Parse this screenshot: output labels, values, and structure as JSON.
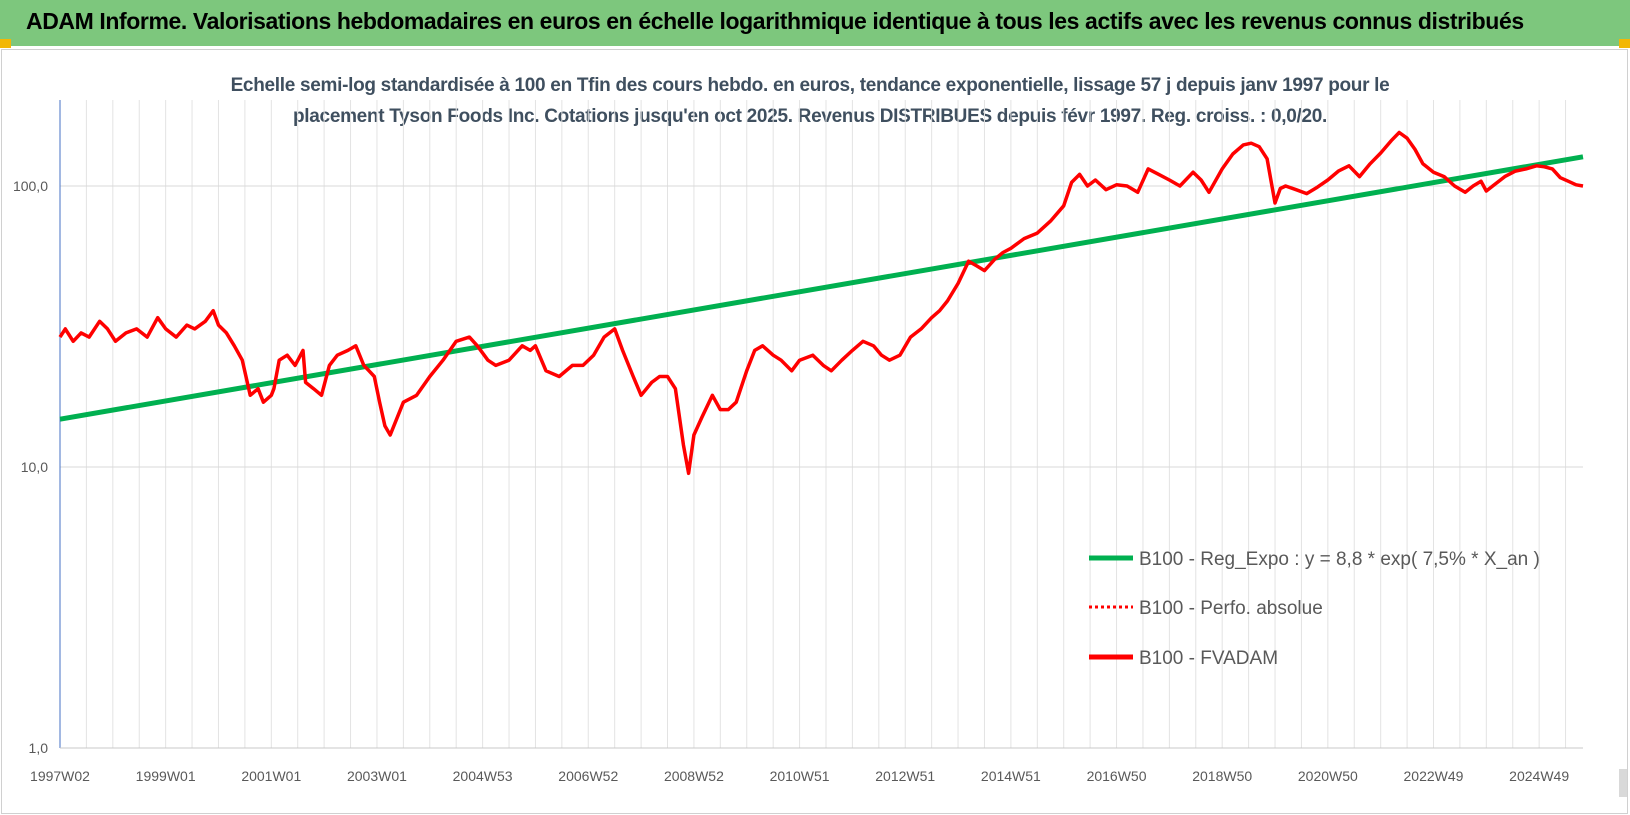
{
  "header": {
    "title": "ADAM Informe. Valorisations hebdomadaires en euros en échelle logarithmique identique à tous les actifs avec les revenus connus distribués",
    "background": "#7dc77d"
  },
  "chart_data": {
    "type": "line",
    "title_lines": [
      "Echelle semi-log standardisée à 100 en Tfin des cours hebdo. en euros, tendance exponentielle, lissage 57 j depuis janv 1997 pour le",
      "placement Tyson Foods Inc. Cotations jusqu'en oct 2025. Revenus DISTRIBUES depuis févr 1997.  Reg. croiss. : 0,0/20."
    ],
    "y_scale": "log",
    "ylim": [
      1,
      200
    ],
    "y_ticks": [
      {
        "value": 1,
        "label": "1,0"
      },
      {
        "value": 10,
        "label": "10,0"
      },
      {
        "value": 100,
        "label": "100,0"
      }
    ],
    "xlim": [
      1997.0,
      2025.83
    ],
    "x_ticks": [
      {
        "value": 1997.0,
        "label": "1997W02"
      },
      {
        "value": 1999.0,
        "label": "1999W01"
      },
      {
        "value": 2001.0,
        "label": "2001W01"
      },
      {
        "value": 2003.0,
        "label": "2003W01"
      },
      {
        "value": 2005.0,
        "label": "2004W53"
      },
      {
        "value": 2007.0,
        "label": "2006W52"
      },
      {
        "value": 2009.0,
        "label": "2008W52"
      },
      {
        "value": 2011.0,
        "label": "2010W51"
      },
      {
        "value": 2013.0,
        "label": "2012W51"
      },
      {
        "value": 2015.0,
        "label": "2014W51"
      },
      {
        "value": 2017.0,
        "label": "2016W50"
      },
      {
        "value": 2019.0,
        "label": "2018W50"
      },
      {
        "value": 2021.0,
        "label": "2020W50"
      },
      {
        "value": 2023.0,
        "label": "2022W49"
      },
      {
        "value": 2025.0,
        "label": "2024W49"
      }
    ],
    "grid": true,
    "legend_position": "bottom-right",
    "series": [
      {
        "name": "B100 - Reg_Expo : y = 8,8 * exp( 7,5% *  X_an )",
        "color": "#00b050",
        "style": "solid",
        "x": [
          1997.0,
          2025.83
        ],
        "y": [
          14.8,
          127
        ]
      },
      {
        "name": "B100 - Perfo. absolue",
        "color": "#ff0000",
        "style": "dotted",
        "x": [],
        "y": []
      },
      {
        "name": "B100 - FVADAM",
        "color": "#ff0000",
        "style": "solid",
        "x": [
          1997.0,
          1997.1,
          1997.25,
          1997.4,
          1997.55,
          1997.75,
          1997.9,
          1998.05,
          1998.25,
          1998.45,
          1998.65,
          1998.85,
          1999.0,
          1999.2,
          1999.4,
          1999.55,
          1999.75,
          1999.9,
          2000.0,
          2000.15,
          2000.3,
          2000.45,
          2000.6,
          2000.75,
          2000.85,
          2001.0,
          2001.05,
          2001.15,
          2001.3,
          2001.45,
          2001.6,
          2001.65,
          2001.8,
          2001.95,
          2002.1,
          2002.25,
          2002.45,
          2002.6,
          2002.75,
          2002.85,
          2002.95,
          2003.05,
          2003.15,
          2003.25,
          2003.5,
          2003.75,
          2004.0,
          2004.25,
          2004.5,
          2004.75,
          2004.9,
          2005.1,
          2005.25,
          2005.5,
          2005.75,
          2005.9,
          2006.0,
          2006.2,
          2006.45,
          2006.7,
          2006.9,
          2007.1,
          2007.3,
          2007.5,
          2007.65,
          2007.85,
          2008.0,
          2008.2,
          2008.35,
          2008.5,
          2008.65,
          2008.8,
          2008.9,
          2009.0,
          2009.15,
          2009.35,
          2009.5,
          2009.65,
          2009.8,
          2010.0,
          2010.15,
          2010.3,
          2010.5,
          2010.65,
          2010.85,
          2011.0,
          2011.25,
          2011.45,
          2011.6,
          2011.8,
          2012.0,
          2012.2,
          2012.4,
          2012.55,
          2012.7,
          2012.9,
          2013.1,
          2013.3,
          2013.5,
          2013.65,
          2013.8,
          2014.0,
          2014.2,
          2014.35,
          2014.5,
          2014.7,
          2014.85,
          2015.0,
          2015.25,
          2015.5,
          2015.75,
          2016.0,
          2016.15,
          2016.3,
          2016.45,
          2016.6,
          2016.8,
          2017.0,
          2017.2,
          2017.4,
          2017.6,
          2017.8,
          2018.0,
          2018.2,
          2018.45,
          2018.6,
          2018.75,
          2019.0,
          2019.2,
          2019.4,
          2019.55,
          2019.7,
          2019.85,
          2020.0,
          2020.1,
          2020.2,
          2020.4,
          2020.6,
          2020.8,
          2021.0,
          2021.2,
          2021.4,
          2021.6,
          2021.8,
          2022.0,
          2022.2,
          2022.35,
          2022.5,
          2022.65,
          2022.8,
          2023.0,
          2023.2,
          2023.4,
          2023.6,
          2023.75,
          2023.9,
          2024.0,
          2024.15,
          2024.35,
          2024.55,
          2024.75,
          2024.95,
          2025.1,
          2025.25,
          2025.4,
          2025.55,
          2025.7,
          2025.83
        ],
        "y": [
          29,
          31,
          28,
          30,
          29,
          33,
          31,
          28,
          30,
          31,
          29,
          34,
          31,
          29,
          32,
          31,
          33,
          36,
          32,
          30,
          27,
          24,
          18,
          19,
          17,
          18,
          19,
          24,
          25,
          23,
          26,
          20,
          19,
          18,
          23,
          25,
          26,
          27,
          23,
          22,
          21,
          17,
          14,
          13,
          17,
          18,
          21,
          24,
          28,
          29,
          27,
          24,
          23,
          24,
          27,
          26,
          27,
          22,
          21,
          23,
          23,
          25,
          29,
          31,
          26,
          21,
          18,
          20,
          21,
          21,
          19,
          12,
          9.5,
          13,
          15,
          18,
          16,
          16,
          17,
          22,
          26,
          27,
          25,
          24,
          22,
          24,
          25,
          23,
          22,
          24,
          26,
          28,
          27,
          25,
          24,
          25,
          29,
          31,
          34,
          36,
          39,
          45,
          54,
          52,
          50,
          55,
          58,
          60,
          65,
          68,
          75,
          85,
          103,
          110,
          100,
          105,
          97,
          101,
          100,
          95,
          115,
          110,
          105,
          100,
          112,
          105,
          95,
          115,
          130,
          140,
          142,
          138,
          125,
          87,
          98,
          100,
          97,
          94,
          99,
          105,
          113,
          118,
          108,
          120,
          131,
          145,
          155,
          148,
          135,
          120,
          112,
          108,
          100,
          95,
          100,
          104,
          96,
          101,
          108,
          113,
          115,
          118,
          117,
          115,
          107,
          104,
          101,
          100
        ]
      }
    ]
  }
}
